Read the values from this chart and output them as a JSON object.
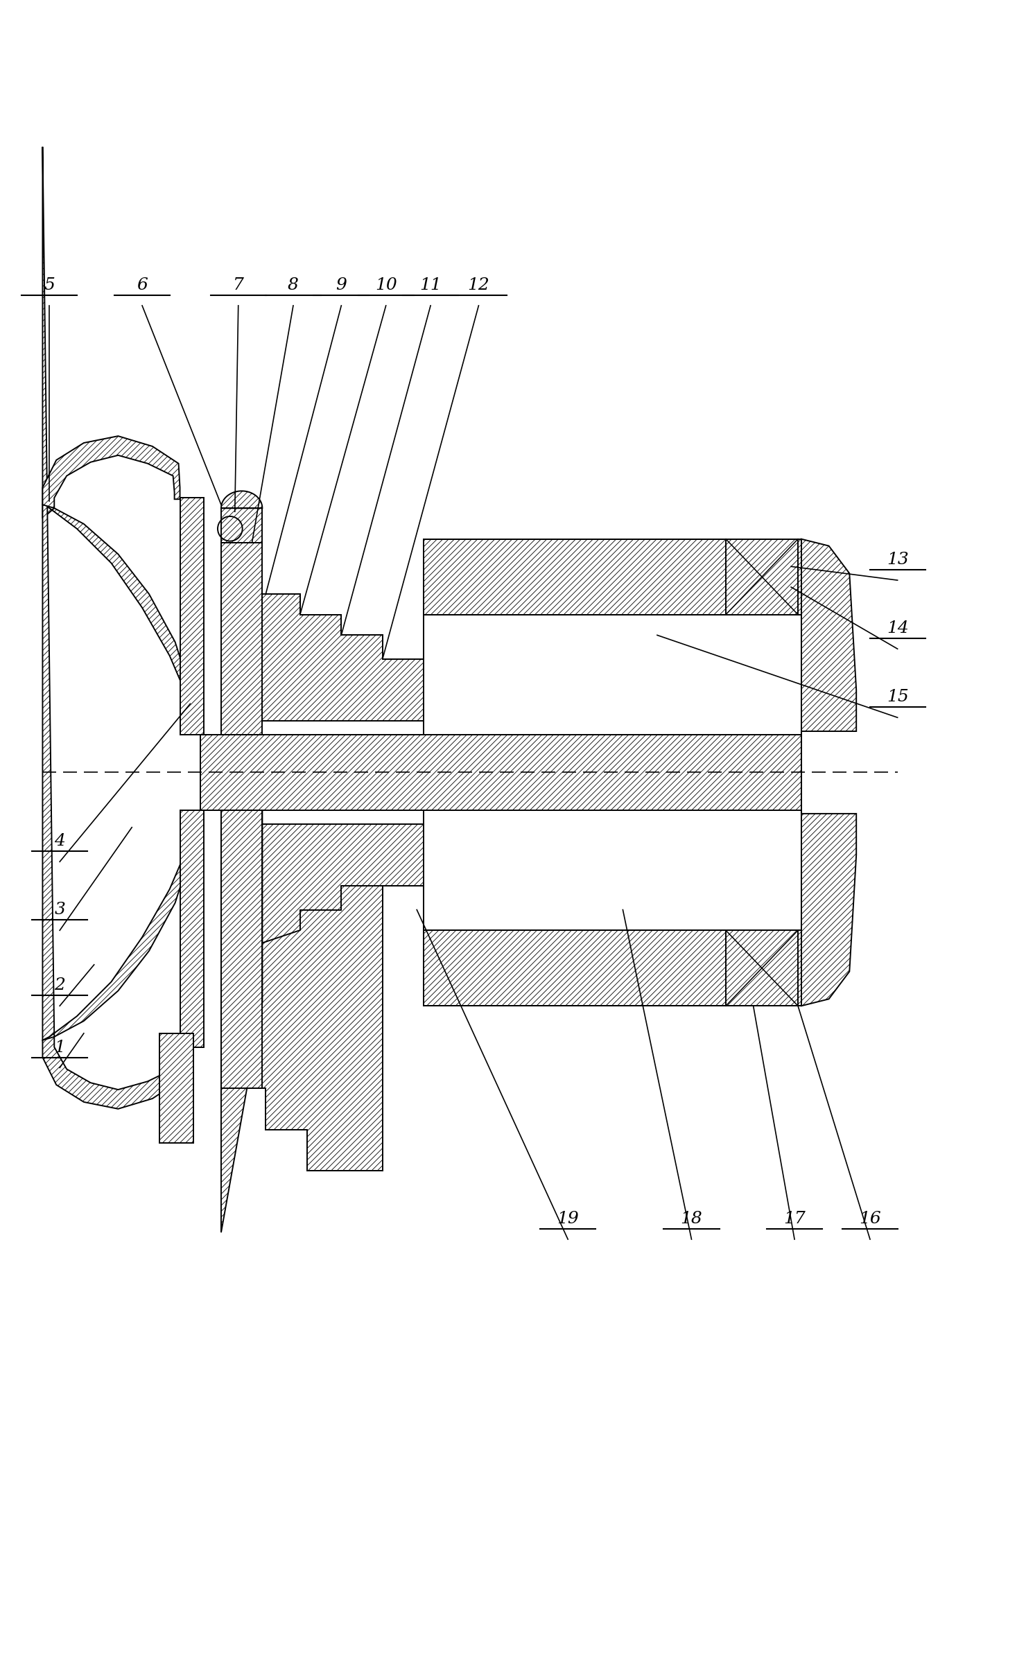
{
  "figsize": [
    14.67,
    23.95
  ],
  "dpi": 100,
  "background": "white",
  "lw": 1.4,
  "hatch_lw": 0.6,
  "label_fontsize": 18,
  "label_font": "DejaVu Serif"
}
